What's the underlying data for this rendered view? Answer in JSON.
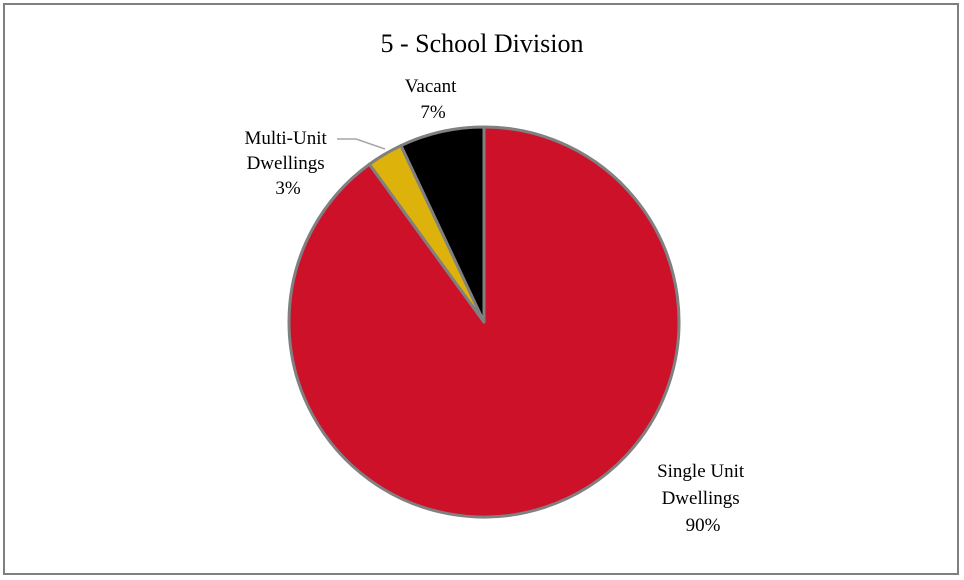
{
  "chart_data": {
    "type": "pie",
    "title": "5 - School Division",
    "slices": [
      {
        "label_lines": [
          "Single Unit",
          "Dwellings"
        ],
        "percent_label": "90%",
        "value": 90,
        "color": "#CC1128"
      },
      {
        "label_lines": [
          "Multi-Unit",
          "Dwellings"
        ],
        "percent_label": "3%",
        "value": 3,
        "color": "#DDB20A"
      },
      {
        "label_lines": [
          "Vacant"
        ],
        "percent_label": "7%",
        "value": 7,
        "color": "#000000"
      }
    ],
    "slice_border_color": "#808080",
    "legend": "none"
  }
}
